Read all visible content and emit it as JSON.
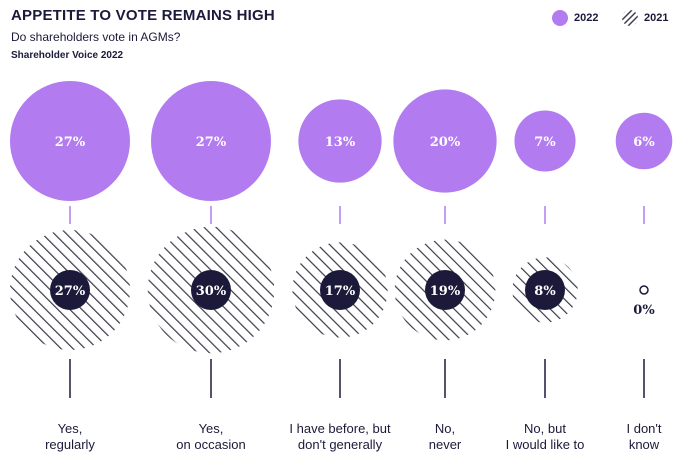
{
  "header": {
    "title": "APPETITE TO VOTE REMAINS HIGH",
    "subtitle": "Do shareholders vote in AGMs?",
    "source": "Shareholder Voice 2022"
  },
  "legend": [
    {
      "label": "2022",
      "style": "solid",
      "color": "#b27cf0"
    },
    {
      "label": "2021",
      "style": "hatched",
      "color": "#1b1a3a"
    }
  ],
  "colors": {
    "purple": "#b27cf0",
    "navy": "#1b1a3a",
    "hatch": "#3a3a4a"
  },
  "chart_data": {
    "type": "bubble",
    "title": "APPETITE TO VOTE REMAINS HIGH",
    "subtitle": "Do shareholders vote in AGMs?",
    "categories": [
      [
        "Yes,",
        "regularly"
      ],
      [
        "Yes,",
        "on occasion"
      ],
      [
        "I have before, but",
        "don't generally"
      ],
      [
        "No,",
        "never"
      ],
      [
        "No, but",
        "I would like to"
      ],
      [
        "I don't",
        "know"
      ]
    ],
    "series": [
      {
        "name": "2022",
        "values": [
          27,
          27,
          13,
          20,
          7,
          6
        ],
        "labels": [
          "27%",
          "27%",
          "13%",
          "20%",
          "7%",
          "6%"
        ]
      },
      {
        "name": "2021",
        "values": [
          27,
          30,
          17,
          19,
          8,
          0
        ],
        "labels": [
          "27%",
          "30%",
          "17%",
          "19%",
          "8%",
          "0%"
        ]
      }
    ],
    "unit": "%"
  }
}
